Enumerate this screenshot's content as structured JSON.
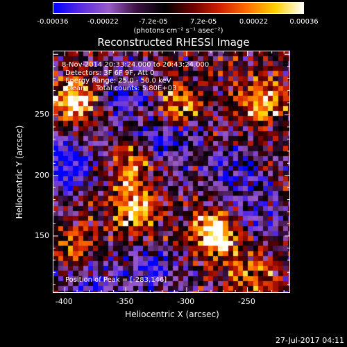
{
  "colorbar": {
    "ticks": [
      "-0.00036",
      "-0.00022",
      "-7.2e-05",
      "7.2e-05",
      "0.00022",
      "0.00036"
    ],
    "units": "(photons cm⁻² s⁻¹ asec⁻²)",
    "colors": [
      "#0000ff",
      "#5a2ce0",
      "#9a5ac8",
      "#3a1040",
      "#000000",
      "#6a0000",
      "#d02000",
      "#ff7000",
      "#ffd000",
      "#ffffff"
    ]
  },
  "chart_data": {
    "type": "heatmap",
    "title": "Reconstructed RHESSI Image",
    "xlabel": "Heliocentric X (arcsec)",
    "ylabel": "Heliocentric Y (arcsec)",
    "xlim": [
      -410,
      -215
    ],
    "ylim": [
      103,
      303
    ],
    "xticks": [
      -400,
      -350,
      -300,
      -250
    ],
    "yticks": [
      150,
      200,
      250
    ],
    "value_range": [
      -0.00036,
      0.00036
    ],
    "annotations": {
      "time": "8-Nov-2014 20:33:24.000 to 20:43:24.000",
      "detectors": "Detectors: 3F 6F 9F, Att 0",
      "energy": "Energy Range: 25.0 - 50.0 keV",
      "clean": "Clean     Total counts: 5.80E+03",
      "peak": "Position of Peak = [-283,146]"
    },
    "peak_position": [
      -283,
      146
    ],
    "bright_regions": [
      {
        "x": -278,
        "y": 152,
        "level": 1.0
      },
      {
        "x": -392,
        "y": 262,
        "level": 0.8
      },
      {
        "x": -343,
        "y": 172,
        "level": 0.75
      },
      {
        "x": -236,
        "y": 262,
        "level": 0.7
      },
      {
        "x": -307,
        "y": 262,
        "level": 0.55
      },
      {
        "x": -346,
        "y": 210,
        "level": 0.55
      },
      {
        "x": -390,
        "y": 140,
        "level": 0.5
      },
      {
        "x": -248,
        "y": 118,
        "level": 0.45
      }
    ],
    "dim_regions": [
      {
        "x": -398,
        "y": 210,
        "level": -0.9
      },
      {
        "x": -318,
        "y": 225,
        "level": -0.6
      },
      {
        "x": -350,
        "y": 265,
        "level": -0.55
      },
      {
        "x": -330,
        "y": 120,
        "level": -0.6
      },
      {
        "x": -262,
        "y": 205,
        "level": -0.45
      },
      {
        "x": -380,
        "y": 115,
        "level": -0.5
      },
      {
        "x": -240,
        "y": 170,
        "level": -0.4
      }
    ]
  },
  "footer": "27-Jul-2017 04:11"
}
